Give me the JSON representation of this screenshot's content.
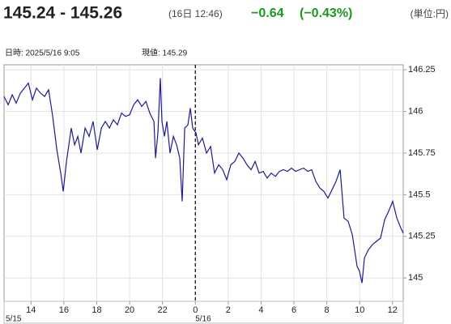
{
  "chart_data": {
    "type": "line",
    "title": "145.24 - 145.26",
    "timestamp": "(16日 12:46)",
    "change": "−0.64",
    "change_pct": "(−0.43%)",
    "unit": "(単位:円)",
    "info_time": "日時: 2025/5/16  9:05",
    "info_price": "現値: 145.29",
    "x": [
      12.36,
      12.61,
      12.86,
      13.1,
      13.35,
      13.6,
      13.84,
      14.09,
      14.33,
      14.58,
      14.83,
      15.07,
      15.32,
      15.57,
      15.81,
      15.96,
      16.16,
      16.45,
      16.65,
      16.85,
      17.04,
      17.29,
      17.54,
      17.78,
      18.03,
      18.28,
      18.52,
      18.77,
      19.01,
      19.26,
      19.51,
      19.75,
      20.0,
      20.25,
      20.49,
      20.74,
      20.99,
      21.23,
      21.48,
      21.58,
      21.72,
      21.87,
      21.97,
      22.12,
      22.27,
      22.46,
      22.66,
      22.86,
      23.05,
      23.2,
      23.35,
      23.55,
      23.69,
      23.84,
      24.04,
      24.19,
      24.43,
      24.68,
      24.93,
      25.17,
      25.42,
      25.67,
      25.91,
      26.16,
      26.4,
      26.65,
      26.9,
      27.14,
      27.39,
      27.64,
      27.88,
      28.13,
      28.37,
      28.62,
      28.87,
      29.11,
      29.36,
      29.61,
      29.85,
      30.1,
      30.34,
      30.59,
      30.84,
      31.08,
      31.33,
      31.58,
      31.82,
      32.07,
      32.32,
      32.56,
      32.81,
      33.05,
      33.3,
      33.55,
      33.69,
      33.84,
      33.99,
      34.14,
      34.29,
      34.53,
      34.78,
      35.02,
      35.27,
      35.52,
      35.76,
      36.01,
      36.26,
      36.5,
      36.65
    ],
    "series": [
      {
        "color": "#1c1c8f",
        "values": [
          146.09,
          146.04,
          146.1,
          146.05,
          146.11,
          146.14,
          146.17,
          146.07,
          146.14,
          146.11,
          146.09,
          146.13,
          145.97,
          145.77,
          145.63,
          145.52,
          145.7,
          145.9,
          145.8,
          145.85,
          145.75,
          145.9,
          145.85,
          145.94,
          145.77,
          145.9,
          145.94,
          145.9,
          145.95,
          145.92,
          145.99,
          145.97,
          145.98,
          146.04,
          146.07,
          146.03,
          146.06,
          145.99,
          145.94,
          145.72,
          145.87,
          146.2,
          145.94,
          145.85,
          145.94,
          145.75,
          145.85,
          145.8,
          145.72,
          145.46,
          145.9,
          145.92,
          146.02,
          145.9,
          145.87,
          145.8,
          145.84,
          145.75,
          145.79,
          145.63,
          145.68,
          145.65,
          145.59,
          145.68,
          145.7,
          145.75,
          145.72,
          145.68,
          145.65,
          145.7,
          145.63,
          145.64,
          145.6,
          145.63,
          145.61,
          145.64,
          145.65,
          145.64,
          145.66,
          145.64,
          145.65,
          145.66,
          145.64,
          145.65,
          145.58,
          145.54,
          145.52,
          145.48,
          145.53,
          145.58,
          145.65,
          145.36,
          145.34,
          145.26,
          145.17,
          145.07,
          145.04,
          144.97,
          145.12,
          145.17,
          145.2,
          145.22,
          145.24,
          145.35,
          145.4,
          145.46,
          145.36,
          145.3,
          145.27
        ]
      }
    ],
    "xlim": [
      12.36,
      36.65
    ],
    "ylim": [
      144.86,
      146.28
    ],
    "xticks": [
      14,
      16,
      18,
      20,
      22,
      {
        "value": 24,
        "label": "0"
      },
      {
        "value": 26,
        "label": "2"
      },
      {
        "value": 28,
        "label": "4"
      },
      {
        "value": 30,
        "label": "6"
      },
      {
        "value": 32,
        "label": "8"
      },
      {
        "value": 34,
        "label": "10"
      },
      {
        "value": 36,
        "label": "12"
      }
    ],
    "date_ticks": [
      {
        "value": 12.36,
        "label": "5/15"
      },
      {
        "value": 24,
        "label": "5/16"
      }
    ],
    "yticks": [
      145,
      145.25,
      145.5,
      145.75,
      146,
      146.25
    ],
    "grid": true
  }
}
